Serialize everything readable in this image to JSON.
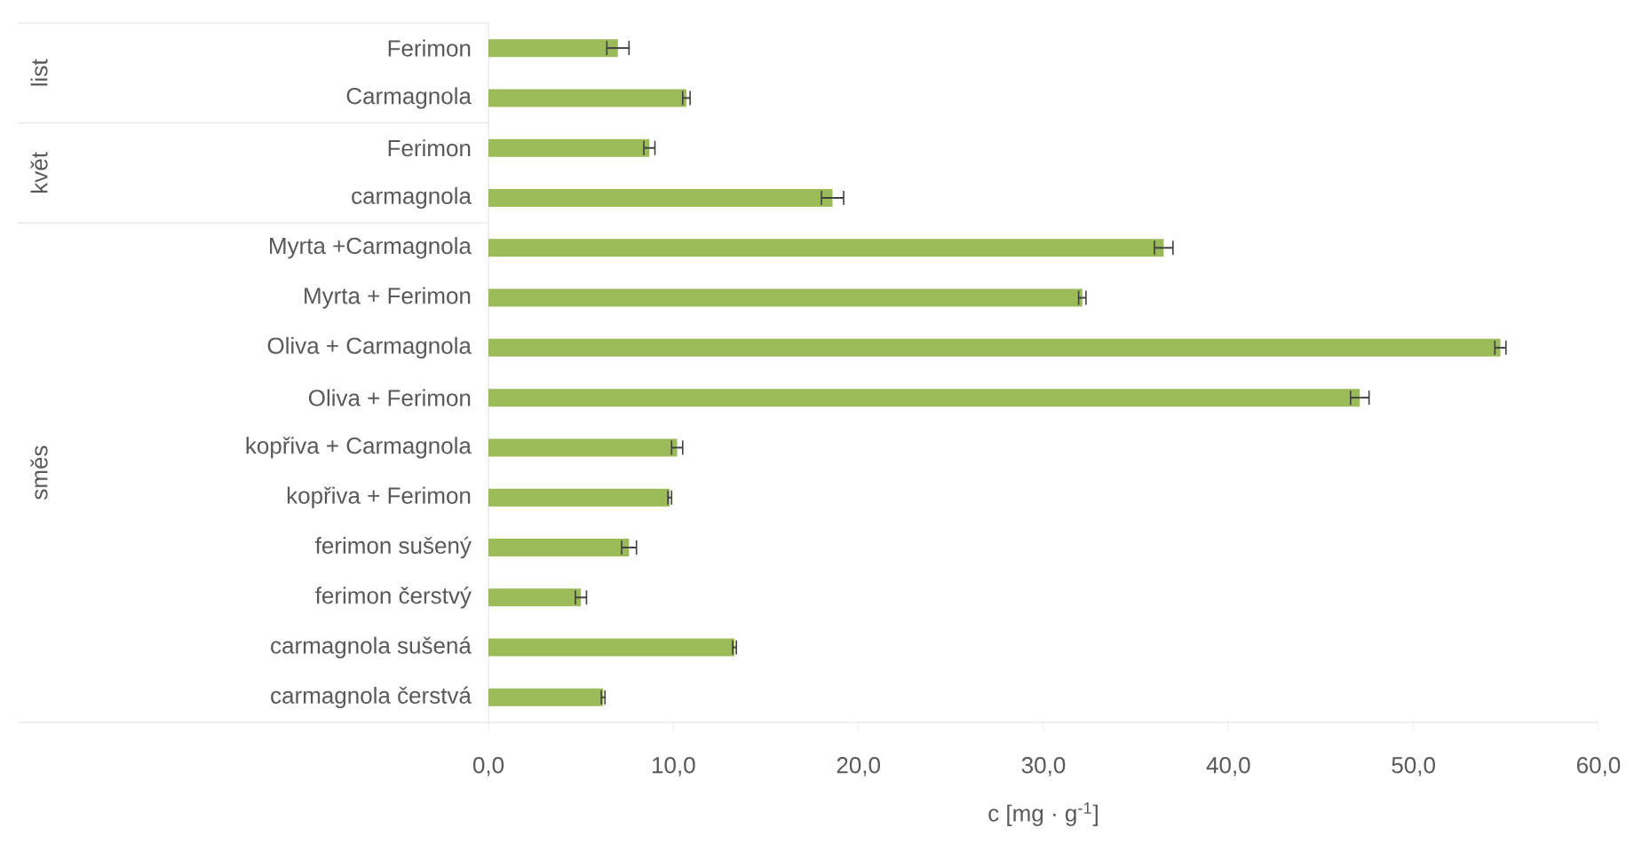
{
  "chart_data": {
    "type": "bar",
    "orientation": "horizontal",
    "categories": [
      "Ferimon",
      "Carmagnola",
      "Ferimon",
      "carmagnola",
      "Myrta +Carmagnola",
      "Myrta + Ferimon",
      "Oliva + Carmagnola",
      "Oliva + Ferimon",
      "kopřiva + Carmagnola",
      "kopřiva + Ferimon",
      "ferimon sušený",
      "ferimon čerstvý",
      "carmagnola sušená",
      "carmagnola čerstvá"
    ],
    "values": [
      7.0,
      10.7,
      8.7,
      18.6,
      36.5,
      32.1,
      54.7,
      47.1,
      10.2,
      9.8,
      7.6,
      5.0,
      13.3,
      6.2
    ],
    "errors": [
      0.6,
      0.2,
      0.3,
      0.6,
      0.5,
      0.2,
      0.3,
      0.5,
      0.3,
      0.1,
      0.4,
      0.3,
      0.1,
      0.1
    ],
    "color": "#9bbb59",
    "xlabel": "c [mg · g$^{-1}$]",
    "xlim": [
      0,
      60
    ],
    "xticks": [
      {
        "value": 0,
        "label": "0,0"
      },
      {
        "value": 10,
        "label": "10,0"
      },
      {
        "value": 20,
        "label": "20,0"
      },
      {
        "value": 30,
        "label": "30,0"
      },
      {
        "value": 40,
        "label": "40,0"
      },
      {
        "value": 50,
        "label": "50,0"
      },
      {
        "value": 60,
        "label": "60,0"
      }
    ],
    "annotations": [
      "list",
      "květ",
      "směs"
    ]
  }
}
